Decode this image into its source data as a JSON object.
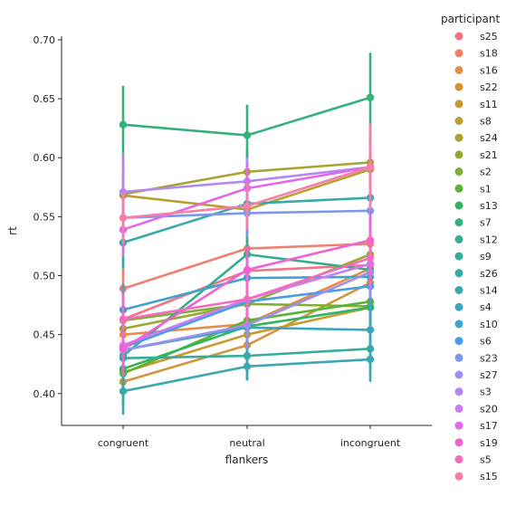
{
  "chart_data": {
    "type": "line",
    "xlabel": "flankers",
    "ylabel": "rt",
    "categories": [
      "congruent",
      "neutral",
      "incongruent"
    ],
    "ylim": [
      0.373,
      0.703
    ],
    "yticks": [
      0.4,
      0.45,
      0.5,
      0.55,
      0.6,
      0.65,
      0.7
    ],
    "ytick_labels": [
      "0.40",
      "0.45",
      "0.50",
      "0.55",
      "0.60",
      "0.65",
      "0.70"
    ],
    "legend": {
      "title": "participant",
      "placement": "right"
    },
    "series": [
      {
        "name": "s25",
        "color": "#f77189",
        "values": [
          0.463,
          0.504,
          0.509
        ],
        "ci": [
          [
            0.44,
            0.486
          ],
          [
            0.484,
            0.524
          ],
          [
            0.487,
            0.531
          ]
        ]
      },
      {
        "name": "s18",
        "color": "#f27f6e",
        "values": [
          0.489,
          0.523,
          0.527
        ],
        "ci": [
          [
            0.467,
            0.511
          ],
          [
            0.503,
            0.543
          ],
          [
            0.505,
            0.549
          ]
        ]
      },
      {
        "name": "s16",
        "color": "#e88c47",
        "values": [
          0.45,
          0.459,
          0.506
        ],
        "ci": [
          [
            0.428,
            0.472
          ],
          [
            0.439,
            0.479
          ],
          [
            0.484,
            0.528
          ]
        ]
      },
      {
        "name": "s22",
        "color": "#d4943a",
        "values": [
          0.41,
          0.441,
          0.494
        ],
        "ci": [
          [
            0.39,
            0.43
          ],
          [
            0.421,
            0.461
          ],
          [
            0.472,
            0.516
          ]
        ]
      },
      {
        "name": "s11",
        "color": "#c59b32",
        "values": [
          0.418,
          0.45,
          0.473
        ],
        "ci": [
          [
            0.398,
            0.438
          ],
          [
            0.43,
            0.47
          ],
          [
            0.451,
            0.495
          ]
        ]
      },
      {
        "name": "s8",
        "color": "#b7a031",
        "values": [
          0.568,
          0.556,
          0.59
        ],
        "ci": [
          [
            0.546,
            0.59
          ],
          [
            0.536,
            0.576
          ],
          [
            0.568,
            0.612
          ]
        ]
      },
      {
        "name": "s24",
        "color": "#a8a431",
        "values": [
          0.569,
          0.588,
          0.596
        ],
        "ci": [
          [
            0.547,
            0.591
          ],
          [
            0.568,
            0.608
          ],
          [
            0.574,
            0.618
          ]
        ]
      },
      {
        "name": "s21",
        "color": "#97a931",
        "values": [
          0.455,
          0.476,
          0.518
        ],
        "ci": [
          [
            0.433,
            0.477
          ],
          [
            0.456,
            0.496
          ],
          [
            0.496,
            0.54
          ]
        ]
      },
      {
        "name": "s2",
        "color": "#80ae32",
        "values": [
          0.462,
          0.476,
          0.474
        ],
        "ci": [
          [
            0.44,
            0.484
          ],
          [
            0.456,
            0.496
          ],
          [
            0.452,
            0.496
          ]
        ]
      },
      {
        "name": "s1",
        "color": "#5cb232",
        "values": [
          0.417,
          0.462,
          0.478
        ],
        "ci": [
          [
            0.389,
            0.445
          ],
          [
            0.442,
            0.482
          ],
          [
            0.456,
            0.5
          ]
        ]
      },
      {
        "name": "s13",
        "color": "#33b45f",
        "values": [
          0.421,
          0.457,
          0.473
        ],
        "ci": [
          [
            0.399,
            0.443
          ],
          [
            0.437,
            0.477
          ],
          [
            0.451,
            0.495
          ]
        ]
      },
      {
        "name": "s7",
        "color": "#34b17d",
        "values": [
          0.628,
          0.619,
          0.651
        ],
        "ci": [
          [
            0.595,
            0.661
          ],
          [
            0.593,
            0.645
          ],
          [
            0.613,
            0.689
          ]
        ]
      },
      {
        "name": "s12",
        "color": "#36ae8e",
        "values": [
          0.432,
          0.518,
          0.505
        ],
        "ci": [
          [
            0.41,
            0.454
          ],
          [
            0.498,
            0.538
          ],
          [
            0.483,
            0.527
          ]
        ]
      },
      {
        "name": "s9",
        "color": "#37ac9b",
        "values": [
          0.43,
          0.432,
          0.438
        ],
        "ci": [
          [
            0.408,
            0.452
          ],
          [
            0.412,
            0.452
          ],
          [
            0.416,
            0.46
          ]
        ]
      },
      {
        "name": "s26",
        "color": "#38aaa6",
        "values": [
          0.528,
          0.561,
          0.566
        ],
        "ci": [
          [
            0.506,
            0.55
          ],
          [
            0.541,
            0.581
          ],
          [
            0.544,
            0.588
          ]
        ]
      },
      {
        "name": "s14",
        "color": "#3aa8b1",
        "values": [
          0.402,
          0.423,
          0.429
        ],
        "ci": [
          [
            0.382,
            0.422
          ],
          [
            0.411,
            0.435
          ],
          [
            0.41,
            0.448
          ]
        ]
      },
      {
        "name": "s4",
        "color": "#3ca5bd",
        "values": [
          0.437,
          0.456,
          0.454
        ],
        "ci": [
          [
            0.415,
            0.459
          ],
          [
            0.436,
            0.476
          ],
          [
            0.432,
            0.476
          ]
        ]
      },
      {
        "name": "s10",
        "color": "#3ea2cd",
        "values": [
          0.471,
          0.498,
          0.499
        ],
        "ci": [
          [
            0.449,
            0.493
          ],
          [
            0.478,
            0.518
          ],
          [
            0.477,
            0.521
          ]
        ]
      },
      {
        "name": "s6",
        "color": "#489de6",
        "values": [
          0.439,
          0.478,
          0.491
        ],
        "ci": [
          [
            0.417,
            0.461
          ],
          [
            0.458,
            0.498
          ],
          [
            0.469,
            0.513
          ]
        ]
      },
      {
        "name": "s23",
        "color": "#7a97ee",
        "values": [
          0.549,
          0.553,
          0.555
        ],
        "ci": [
          [
            0.527,
            0.571
          ],
          [
            0.533,
            0.573
          ],
          [
            0.533,
            0.577
          ]
        ]
      },
      {
        "name": "s27",
        "color": "#9a90f1",
        "values": [
          0.437,
          0.458,
          0.503
        ],
        "ci": [
          [
            0.415,
            0.459
          ],
          [
            0.438,
            0.478
          ],
          [
            0.481,
            0.525
          ]
        ]
      },
      {
        "name": "s3",
        "color": "#b488f4",
        "values": [
          0.571,
          0.58,
          0.592
        ],
        "ci": [
          [
            0.538,
            0.604
          ],
          [
            0.56,
            0.6
          ],
          [
            0.57,
            0.614
          ]
        ]
      },
      {
        "name": "s20",
        "color": "#cc7cf2",
        "values": [
          0.441,
          0.48,
          0.51
        ],
        "ci": [
          [
            0.419,
            0.463
          ],
          [
            0.46,
            0.5
          ],
          [
            0.488,
            0.532
          ]
        ]
      },
      {
        "name": "s17",
        "color": "#e169e8",
        "values": [
          0.539,
          0.574,
          0.592
        ],
        "ci": [
          [
            0.517,
            0.561
          ],
          [
            0.554,
            0.594
          ],
          [
            0.57,
            0.614
          ]
        ]
      },
      {
        "name": "s19",
        "color": "#ef63d3",
        "values": [
          0.438,
          0.505,
          0.53
        ],
        "ci": [
          [
            0.416,
            0.46
          ],
          [
            0.485,
            0.525
          ],
          [
            0.508,
            0.552
          ]
        ]
      },
      {
        "name": "s5",
        "color": "#f46bc0",
        "values": [
          0.463,
          0.48,
          0.515
        ],
        "ci": [
          [
            0.441,
            0.485
          ],
          [
            0.46,
            0.5
          ],
          [
            0.493,
            0.537
          ]
        ]
      },
      {
        "name": "s15",
        "color": "#f67eab",
        "values": [
          0.549,
          0.559,
          0.592
        ],
        "ci": [
          [
            0.527,
            0.571
          ],
          [
            0.539,
            0.579
          ],
          [
            0.555,
            0.629
          ]
        ]
      }
    ]
  }
}
